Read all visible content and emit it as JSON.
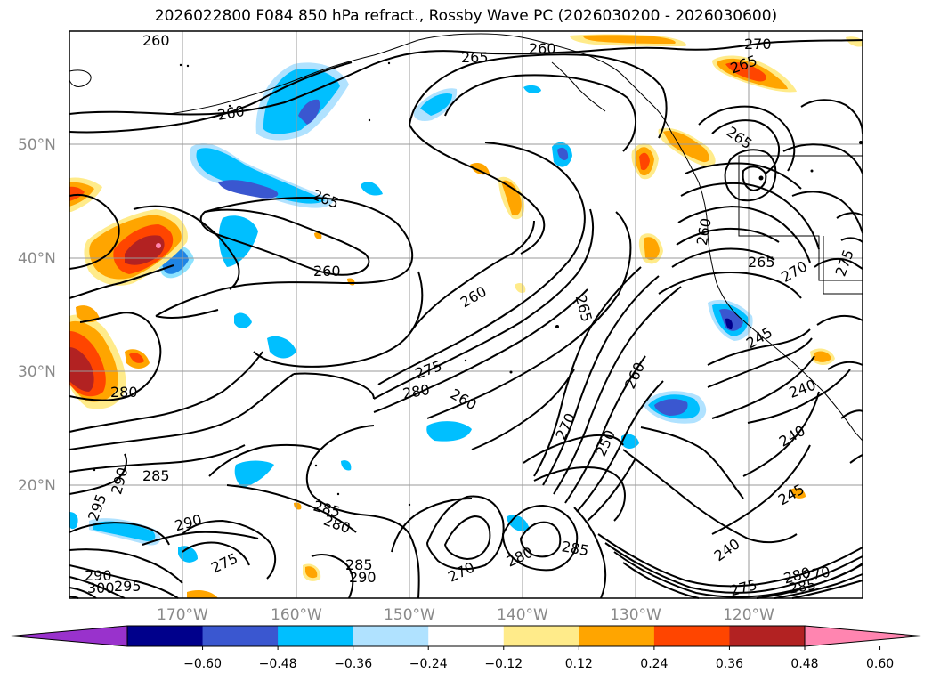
{
  "title": "2026022800 F084 850 hPa refract., Rossby Wave PC (2026030200 - 2026030600)",
  "lat_labels": [
    "50°N",
    "40°N",
    "30°N",
    "20°N"
  ],
  "lon_labels": [
    "170°W",
    "160°W",
    "150°W",
    "140°W",
    "130°W",
    "120°W"
  ],
  "colorbar": {
    "ticks": [
      "−0.60",
      "−0.48",
      "−0.36",
      "−0.24",
      "−0.12",
      "0.12",
      "0.24",
      "0.36",
      "0.48",
      "0.60"
    ],
    "colors": [
      "#9932cc",
      "#00008b",
      "#3a57d0",
      "#00bfff",
      "#b0e2ff",
      "#ffffff",
      "#ffeb8a",
      "#ffa500",
      "#ff4500",
      "#b22222",
      "#ff85b0"
    ]
  },
  "contour_labels": [
    "260",
    "265",
    "260",
    "265",
    "270",
    "265",
    "260",
    "265",
    "260",
    "260",
    "265",
    "265",
    "270",
    "275",
    "260",
    "275",
    "280",
    "260",
    "280",
    "270",
    "250",
    "260",
    "245",
    "240",
    "240",
    "245",
    "240",
    "285",
    "290",
    "290",
    "295",
    "285",
    "280",
    "275",
    "285",
    "290",
    "280",
    "270",
    "285",
    "300",
    "295",
    "290",
    "275",
    "280",
    "285",
    "270"
  ]
}
